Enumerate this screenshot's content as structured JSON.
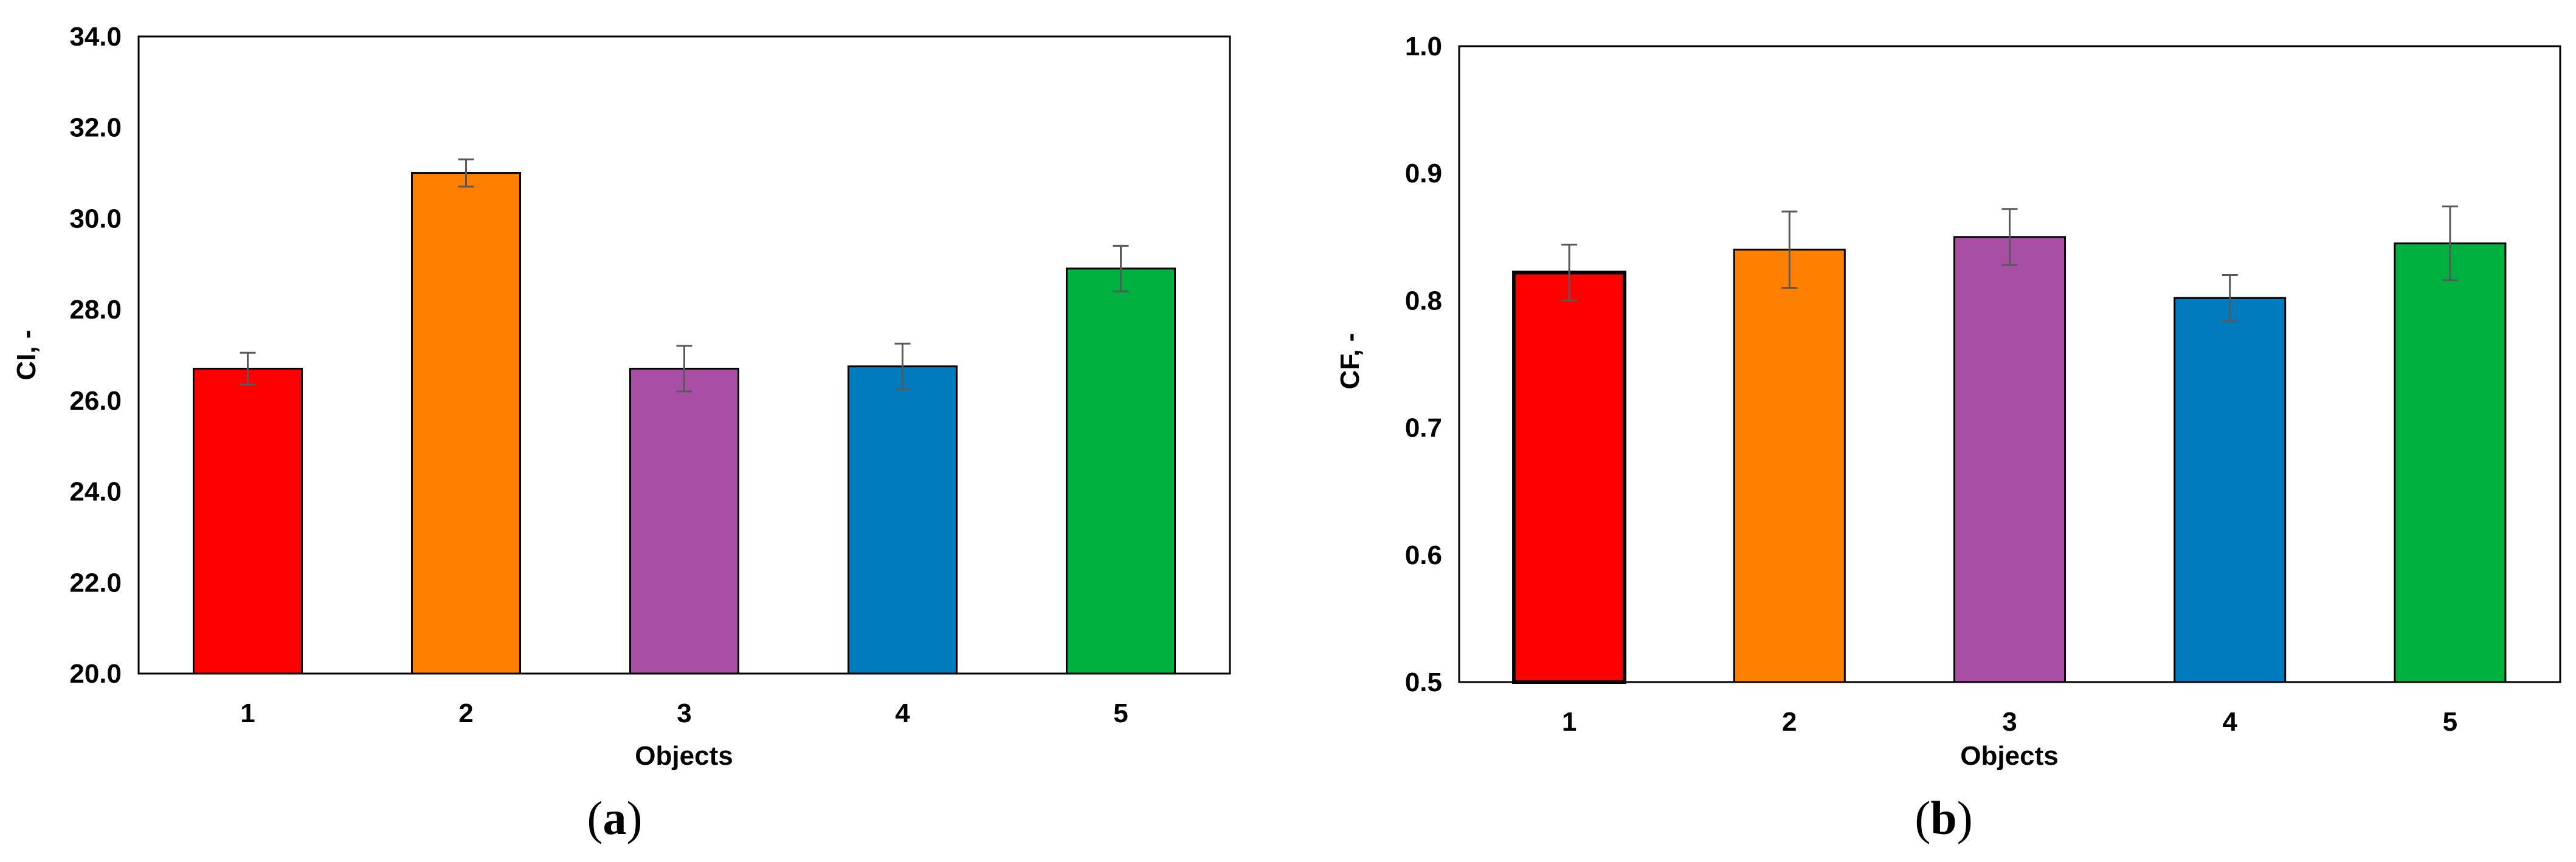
{
  "chart_data": [
    {
      "type": "bar",
      "panel_label": "a",
      "xlabel": "Objects",
      "ylabel": "CI, -",
      "categories": [
        "1",
        "2",
        "3",
        "4",
        "5"
      ],
      "values": [
        26.7,
        31.0,
        26.7,
        26.75,
        28.9
      ],
      "errors": [
        0.35,
        0.3,
        0.5,
        0.5,
        0.5
      ],
      "colors": [
        "#ff0000",
        "#ff8000",
        "#a94ea5",
        "#007bbd",
        "#00b140"
      ],
      "ylim": [
        20.0,
        34.0
      ],
      "yticks": [
        "20.0",
        "22.0",
        "24.0",
        "26.0",
        "28.0",
        "30.0",
        "32.0",
        "34.0"
      ],
      "grid": false,
      "legend": "none"
    },
    {
      "type": "bar",
      "panel_label": "b",
      "xlabel": "Objects",
      "ylabel": "CF, -",
      "categories": [
        "1",
        "2",
        "3",
        "4",
        "5"
      ],
      "values": [
        0.822,
        0.84,
        0.85,
        0.802,
        0.845
      ],
      "errors": [
        0.022,
        0.03,
        0.022,
        0.018,
        0.029
      ],
      "colors": [
        "#ff0000",
        "#ff8000",
        "#a94ea5",
        "#007bbd",
        "#00b140"
      ],
      "ylim": [
        0.5,
        1.0
      ],
      "yticks": [
        "0.5",
        "0.6",
        "0.7",
        "0.8",
        "0.9",
        "1.0"
      ],
      "grid": false,
      "legend": "none"
    }
  ]
}
